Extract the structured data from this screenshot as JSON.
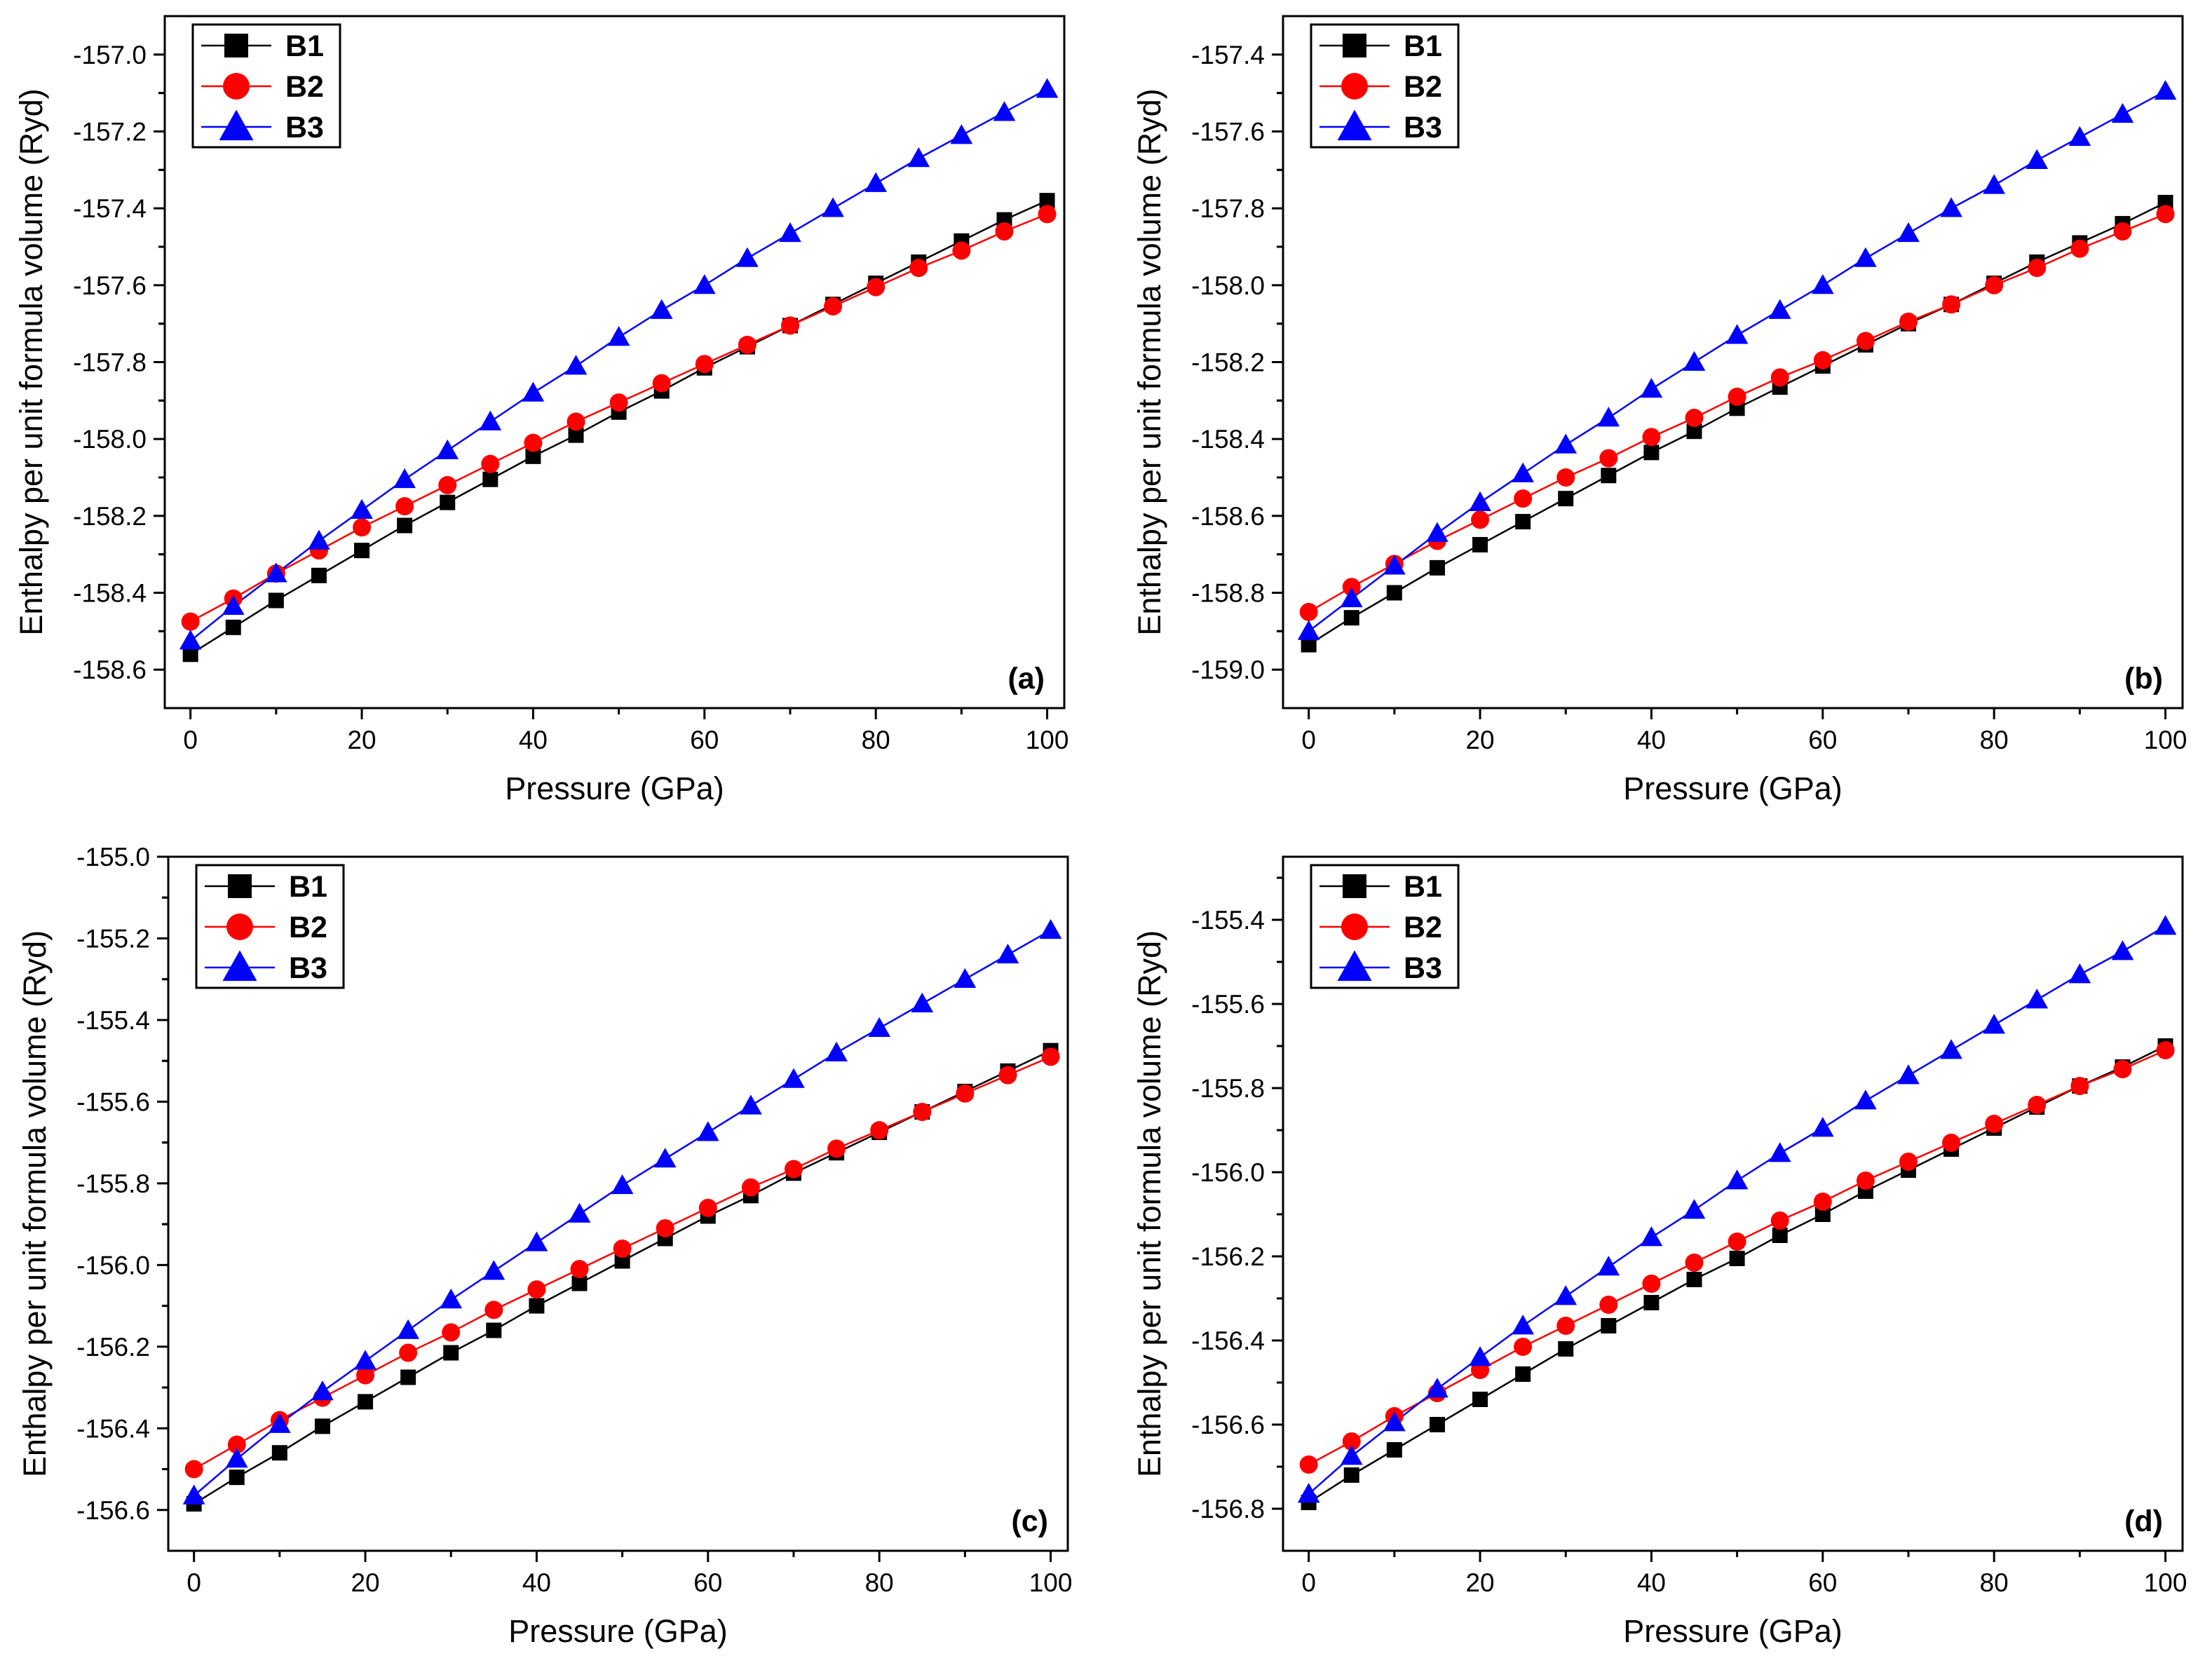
{
  "colors": {
    "B1": "#000000",
    "B2": "#ff0000",
    "B3": "#0000ff"
  },
  "chart_data": [
    {
      "type": "line",
      "panel_label": "(a)",
      "xlabel": "Pressure (GPa)",
      "ylabel": "Enthalpy per unit formula volume (Ryd)",
      "xlim": [
        -3,
        102
      ],
      "ylim": [
        -158.7,
        -156.9
      ],
      "xticks": [
        "0",
        "20",
        "40",
        "60",
        "80",
        "100"
      ],
      "yticks": [
        "-158.6",
        "-158.4",
        "-158.2",
        "-158.0",
        "-157.8",
        "-157.6",
        "-157.4",
        "-157.2",
        "-157.0"
      ],
      "legend": {
        "position": "top-left",
        "entries": [
          "B1",
          "B2",
          "B3"
        ]
      },
      "x": [
        0,
        5,
        10,
        15,
        20,
        25,
        30,
        35,
        40,
        45,
        50,
        55,
        60,
        65,
        70,
        75,
        80,
        85,
        90,
        95,
        100
      ],
      "series": [
        {
          "name": "B1",
          "marker": "square",
          "values": [
            -158.56,
            -158.49,
            -158.42,
            -158.355,
            -158.29,
            -158.225,
            -158.165,
            -158.105,
            -158.045,
            -157.99,
            -157.93,
            -157.875,
            -157.815,
            -157.76,
            -157.705,
            -157.65,
            -157.595,
            -157.54,
            -157.485,
            -157.43,
            -157.38
          ]
        },
        {
          "name": "B2",
          "marker": "circle",
          "values": [
            -158.475,
            -158.415,
            -158.35,
            -158.29,
            -158.23,
            -158.175,
            -158.12,
            -158.065,
            -158.01,
            -157.955,
            -157.905,
            -157.855,
            -157.805,
            -157.755,
            -157.705,
            -157.655,
            -157.605,
            -157.555,
            -157.51,
            -157.46,
            -157.415
          ]
        },
        {
          "name": "B3",
          "marker": "triangle",
          "values": [
            -158.525,
            -158.435,
            -158.35,
            -158.265,
            -158.185,
            -158.105,
            -158.03,
            -157.955,
            -157.88,
            -157.81,
            -157.735,
            -157.665,
            -157.6,
            -157.53,
            -157.465,
            -157.4,
            -157.335,
            -157.27,
            -157.21,
            -157.15,
            -157.09
          ]
        }
      ]
    },
    {
      "type": "line",
      "panel_label": "(b)",
      "xlabel": "Pressure (GPa)",
      "ylabel": "Enthalpy per unit formula volume (Ryd)",
      "xlim": [
        -3,
        102
      ],
      "ylim": [
        -159.1,
        -157.3
      ],
      "xticks": [
        "0",
        "20",
        "40",
        "60",
        "80",
        "100"
      ],
      "yticks": [
        "-159.0",
        "-158.8",
        "-158.6",
        "-158.4",
        "-158.2",
        "-158.0",
        "-157.8",
        "-157.6",
        "-157.4"
      ],
      "legend": {
        "position": "top-left",
        "entries": [
          "B1",
          "B2",
          "B3"
        ]
      },
      "x": [
        0,
        5,
        10,
        15,
        20,
        25,
        30,
        35,
        40,
        45,
        50,
        55,
        60,
        65,
        70,
        75,
        80,
        85,
        90,
        95,
        100
      ],
      "series": [
        {
          "name": "B1",
          "marker": "square",
          "values": [
            -158.935,
            -158.865,
            -158.8,
            -158.735,
            -158.675,
            -158.615,
            -158.555,
            -158.495,
            -158.435,
            -158.38,
            -158.32,
            -158.265,
            -158.21,
            -158.155,
            -158.1,
            -158.05,
            -157.995,
            -157.94,
            -157.89,
            -157.84,
            -157.785
          ]
        },
        {
          "name": "B2",
          "marker": "circle",
          "values": [
            -158.85,
            -158.785,
            -158.725,
            -158.665,
            -158.61,
            -158.555,
            -158.5,
            -158.45,
            -158.395,
            -158.345,
            -158.29,
            -158.24,
            -158.195,
            -158.145,
            -158.095,
            -158.05,
            -158.0,
            -157.955,
            -157.905,
            -157.86,
            -157.815
          ]
        },
        {
          "name": "B3",
          "marker": "triangle",
          "values": [
            -158.9,
            -158.815,
            -158.73,
            -158.645,
            -158.565,
            -158.49,
            -158.415,
            -158.345,
            -158.27,
            -158.2,
            -158.13,
            -158.065,
            -158.0,
            -157.93,
            -157.865,
            -157.8,
            -157.74,
            -157.675,
            -157.615,
            -157.555,
            -157.495
          ]
        }
      ]
    },
    {
      "type": "line",
      "panel_label": "(c)",
      "xlabel": "Pressure (GPa)",
      "ylabel": "Enthalpy per unit formula volume (Ryd)",
      "xlim": [
        -3,
        102
      ],
      "ylim": [
        -156.7,
        -155.0
      ],
      "xticks": [
        "0",
        "20",
        "40",
        "60",
        "80",
        "100"
      ],
      "yticks": [
        "-156.6",
        "-156.4",
        "-156.2",
        "-156.0",
        "-155.8",
        "-155.6",
        "-155.4",
        "-155.2",
        "-155.0"
      ],
      "legend": {
        "position": "top-left",
        "entries": [
          "B1",
          "B2",
          "B3"
        ]
      },
      "x": [
        0,
        5,
        10,
        15,
        20,
        25,
        30,
        35,
        40,
        45,
        50,
        55,
        60,
        65,
        70,
        75,
        80,
        85,
        90,
        95,
        100
      ],
      "series": [
        {
          "name": "B1",
          "marker": "square",
          "values": [
            -156.585,
            -156.52,
            -156.46,
            -156.395,
            -156.335,
            -156.275,
            -156.215,
            -156.16,
            -156.1,
            -156.045,
            -155.99,
            -155.935,
            -155.88,
            -155.83,
            -155.775,
            -155.725,
            -155.675,
            -155.625,
            -155.575,
            -155.525,
            -155.475
          ]
        },
        {
          "name": "B2",
          "marker": "circle",
          "values": [
            -156.5,
            -156.44,
            -156.38,
            -156.325,
            -156.27,
            -156.215,
            -156.165,
            -156.11,
            -156.06,
            -156.01,
            -155.96,
            -155.91,
            -155.86,
            -155.81,
            -155.765,
            -155.715,
            -155.67,
            -155.625,
            -155.58,
            -155.535,
            -155.49
          ]
        },
        {
          "name": "B3",
          "marker": "triangle",
          "values": [
            -156.565,
            -156.475,
            -156.39,
            -156.31,
            -156.235,
            -156.16,
            -156.085,
            -156.015,
            -155.945,
            -155.875,
            -155.805,
            -155.74,
            -155.675,
            -155.61,
            -155.545,
            -155.48,
            -155.42,
            -155.36,
            -155.3,
            -155.24,
            -155.18
          ]
        }
      ]
    },
    {
      "type": "line",
      "panel_label": "(d)",
      "xlabel": "Pressure (GPa)",
      "ylabel": "Enthalpy per unit formula volume (Ryd)",
      "xlim": [
        -3,
        102
      ],
      "ylim": [
        -156.9,
        -155.25
      ],
      "xticks": [
        "0",
        "20",
        "40",
        "60",
        "80",
        "100"
      ],
      "yticks": [
        "-156.8",
        "-156.6",
        "-156.4",
        "-156.2",
        "-156.0",
        "-155.8",
        "-155.6",
        "-155.4"
      ],
      "legend": {
        "position": "top-left",
        "entries": [
          "B1",
          "B2",
          "B3"
        ]
      },
      "x": [
        0,
        5,
        10,
        15,
        20,
        25,
        30,
        35,
        40,
        45,
        50,
        55,
        60,
        65,
        70,
        75,
        80,
        85,
        90,
        95,
        100
      ],
      "series": [
        {
          "name": "B1",
          "marker": "square",
          "values": [
            -156.785,
            -156.72,
            -156.66,
            -156.6,
            -156.54,
            -156.48,
            -156.42,
            -156.365,
            -156.31,
            -156.255,
            -156.205,
            -156.15,
            -156.1,
            -156.045,
            -155.995,
            -155.945,
            -155.895,
            -155.845,
            -155.795,
            -155.75,
            -155.7
          ]
        },
        {
          "name": "B2",
          "marker": "circle",
          "values": [
            -156.695,
            -156.64,
            -156.58,
            -156.525,
            -156.47,
            -156.415,
            -156.365,
            -156.315,
            -156.265,
            -156.215,
            -156.165,
            -156.115,
            -156.07,
            -156.02,
            -155.975,
            -155.93,
            -155.885,
            -155.84,
            -155.795,
            -155.755,
            -155.71
          ]
        },
        {
          "name": "B3",
          "marker": "triangle",
          "values": [
            -156.765,
            -156.675,
            -156.595,
            -156.515,
            -156.44,
            -156.365,
            -156.295,
            -156.225,
            -156.155,
            -156.09,
            -156.02,
            -155.955,
            -155.895,
            -155.83,
            -155.77,
            -155.71,
            -155.65,
            -155.59,
            -155.53,
            -155.475,
            -155.415
          ]
        }
      ]
    }
  ]
}
